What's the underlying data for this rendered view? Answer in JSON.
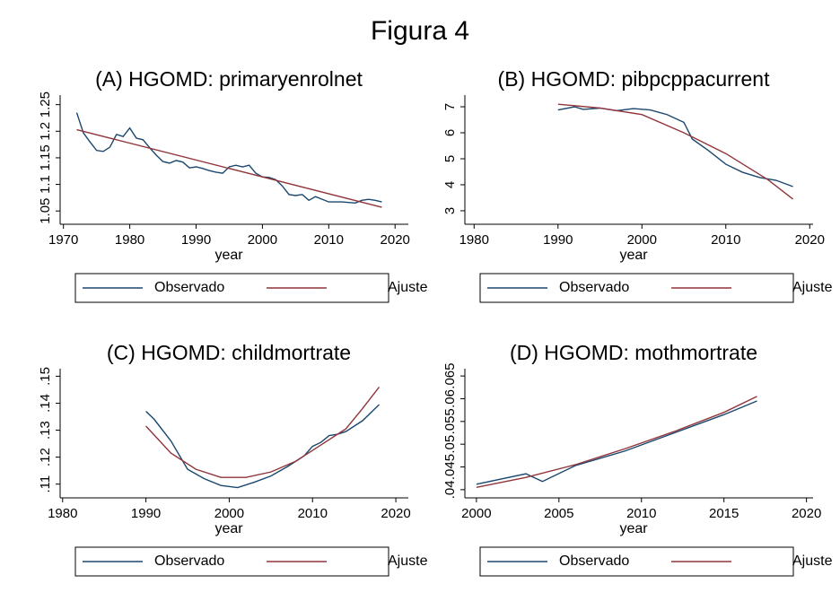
{
  "title": "Figura 4",
  "chart_data": [
    {
      "type": "line",
      "title": "(A) HGOMD: primaryenrolnet",
      "xlabel": "year",
      "xlim": [
        1969.5,
        2022
      ],
      "xticks": [
        1970,
        1980,
        1990,
        2000,
        2010,
        2020
      ],
      "ylim": [
        1.025,
        1.268
      ],
      "yticks": [
        1.05,
        1.1,
        1.15,
        1.2,
        1.25
      ],
      "series": [
        {
          "name": "Observado",
          "color": "#1a476f",
          "x": [
            1972,
            1973,
            1974,
            1975,
            1976,
            1977,
            1978,
            1979,
            1980,
            1981,
            1982,
            1983,
            1984,
            1985,
            1986,
            1987,
            1988,
            1989,
            1990,
            1991,
            1992,
            1993,
            1994,
            1995,
            1996,
            1997,
            1998,
            1999,
            2000,
            2001,
            2002,
            2003,
            2004,
            2005,
            2006,
            2007,
            2008,
            2009,
            2010,
            2011,
            2012,
            2013,
            2014,
            2015,
            2016,
            2017,
            2018
          ],
          "values": [
            1.235,
            1.197,
            1.18,
            1.164,
            1.162,
            1.17,
            1.194,
            1.19,
            1.206,
            1.187,
            1.184,
            1.169,
            1.155,
            1.143,
            1.14,
            1.145,
            1.142,
            1.131,
            1.133,
            1.13,
            1.126,
            1.123,
            1.121,
            1.133,
            1.136,
            1.133,
            1.136,
            1.121,
            1.114,
            1.113,
            1.109,
            1.097,
            1.081,
            1.079,
            1.081,
            1.07,
            1.077,
            1.072,
            1.067,
            1.067,
            1.067,
            1.066,
            1.065,
            1.07,
            1.072,
            1.07,
            1.067
          ]
        },
        {
          "name": "Ajuste",
          "color": "#90353b",
          "x": [
            1972,
            2018
          ],
          "values": [
            1.203,
            1.057
          ]
        }
      ]
    },
    {
      "type": "line",
      "title": "(B) HGOMD: pibpcppacurrent",
      "xlabel": "year",
      "xlim": [
        1978.9,
        2020.4
      ],
      "xticks": [
        1980,
        1990,
        2000,
        2010,
        2020
      ],
      "ylim": [
        2.48,
        7.45
      ],
      "yticks": [
        3,
        4,
        5,
        6,
        7
      ],
      "series": [
        {
          "name": "Observado",
          "color": "#1a476f",
          "x": [
            1990,
            1992,
            1993,
            1995,
            1997,
            1999,
            2001,
            2003,
            2005,
            2006,
            2008,
            2010,
            2012,
            2014,
            2016,
            2018
          ],
          "values": [
            6.88,
            7.0,
            6.9,
            6.95,
            6.85,
            6.93,
            6.88,
            6.7,
            6.4,
            5.76,
            5.3,
            4.79,
            4.48,
            4.28,
            4.17,
            3.93
          ]
        },
        {
          "name": "Ajuste",
          "color": "#90353b",
          "x": [
            1990,
            1995,
            2000,
            2005,
            2010,
            2015,
            2018
          ],
          "values": [
            7.1,
            6.95,
            6.7,
            6.0,
            5.2,
            4.2,
            3.45
          ]
        }
      ]
    },
    {
      "type": "line",
      "title": "(C) HGOMD: childmortrate",
      "xlabel": "year",
      "xlim": [
        1979.7,
        2021.5
      ],
      "xticks": [
        1980,
        1990,
        2000,
        2010,
        2020
      ],
      "ylim": [
        0.1049,
        0.1528
      ],
      "yticks": [
        {
          "value": 0.11,
          "label": ".11"
        },
        {
          "value": 0.12,
          "label": ".12"
        },
        {
          "value": 0.13,
          "label": ".13"
        },
        {
          "value": 0.14,
          "label": ".14"
        },
        {
          "value": 0.15,
          "label": ".15"
        }
      ],
      "series": [
        {
          "name": "Observado",
          "color": "#1a476f",
          "x": [
            1990,
            1991,
            1993,
            1995,
            1997,
            1999,
            2001,
            2003,
            2005,
            2007,
            2008,
            2009,
            2010,
            2011,
            2012,
            2013,
            2014,
            2016,
            2018
          ],
          "values": [
            0.137,
            0.134,
            0.126,
            0.1155,
            0.112,
            0.1095,
            0.1087,
            0.1107,
            0.113,
            0.1165,
            0.1185,
            0.1205,
            0.124,
            0.1255,
            0.128,
            0.1285,
            0.1295,
            0.1335,
            0.1395
          ]
        },
        {
          "name": "Ajuste",
          "color": "#90353b",
          "x": [
            1990,
            1993,
            1996,
            1999,
            2002,
            2005,
            2008,
            2011,
            2014,
            2016,
            2018
          ],
          "values": [
            0.1315,
            0.1215,
            0.1155,
            0.1125,
            0.1125,
            0.1145,
            0.1185,
            0.1245,
            0.1305,
            0.138,
            0.146
          ]
        }
      ]
    },
    {
      "type": "line",
      "title": "(D) HGOMD: mothmortrate",
      "xlabel": "year",
      "xlim": [
        1999.3,
        2020.4
      ],
      "xticks": [
        2000,
        2005,
        2010,
        2015,
        2020
      ],
      "ylim": [
        0.0382,
        0.0666
      ],
      "yticks": [
        {
          "value": 0.04,
          "label": ".04"
        },
        {
          "value": 0.045,
          "label": ".045"
        },
        {
          "value": 0.05,
          "label": ".05"
        },
        {
          "value": 0.055,
          "label": ".055"
        },
        {
          "value": 0.06,
          "label": ".06"
        },
        {
          "value": 0.065,
          "label": ".065"
        }
      ],
      "series": [
        {
          "name": "Observado",
          "color": "#1a476f",
          "x": [
            2000,
            2003,
            2004,
            2006,
            2009,
            2012,
            2015,
            2017
          ],
          "values": [
            0.0412,
            0.0435,
            0.0418,
            0.0453,
            0.0485,
            0.0525,
            0.0565,
            0.0595
          ]
        },
        {
          "name": "Ajuste",
          "color": "#90353b",
          "x": [
            2000,
            2003,
            2006,
            2009,
            2012,
            2015,
            2017
          ],
          "values": [
            0.0405,
            0.0427,
            0.0455,
            0.049,
            0.0528,
            0.057,
            0.0605
          ]
        }
      ]
    }
  ]
}
